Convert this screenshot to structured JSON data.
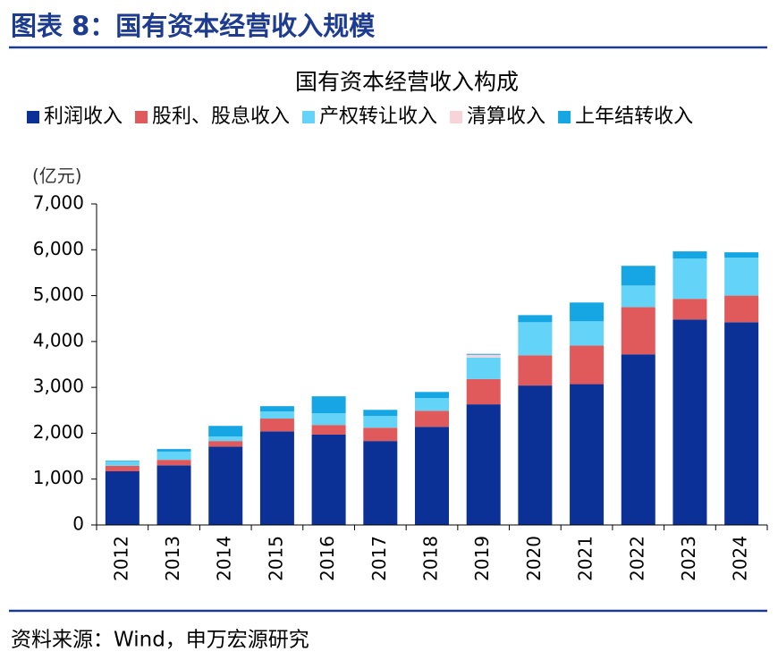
{
  "header": {
    "title": "图表 8：国有资本经营收入规模"
  },
  "chart_data": {
    "type": "stacked_bar",
    "title": "国有资本经营收入构成",
    "y_unit": "(亿元)",
    "categories": [
      "2012",
      "2013",
      "2014",
      "2015",
      "2016",
      "2017",
      "2018",
      "2019",
      "2020",
      "2021",
      "2022",
      "2023",
      "2024"
    ],
    "series": [
      {
        "name": "利润收入",
        "color": "#0b3197",
        "values": [
          1170,
          1300,
          1710,
          2040,
          1970,
          1830,
          2140,
          2630,
          3040,
          3070,
          3720,
          4480,
          4420
        ]
      },
      {
        "name": "股利、股息收入",
        "color": "#e05a5c",
        "values": [
          120,
          120,
          120,
          280,
          210,
          290,
          350,
          550,
          660,
          840,
          1030,
          450,
          580
        ]
      },
      {
        "name": "产权转让收入",
        "color": "#63d4f7",
        "values": [
          95,
          180,
          100,
          155,
          255,
          255,
          275,
          470,
          720,
          530,
          470,
          880,
          830
        ]
      },
      {
        "name": "清算收入",
        "color": "#f9d3da",
        "values": [
          0,
          0,
          0,
          0,
          0,
          0,
          0,
          60,
          0,
          0,
          0,
          0,
          0
        ]
      },
      {
        "name": "上年结转收入",
        "color": "#16a6e4",
        "values": [
          15,
          55,
          230,
          115,
          370,
          135,
          135,
          20,
          155,
          410,
          430,
          155,
          115
        ]
      }
    ],
    "ylim": [
      0,
      7000
    ],
    "yticks": [
      0,
      {
        "value": 1000,
        "label": "1,000"
      },
      {
        "value": 2000,
        "label": "2,000"
      },
      {
        "value": 3000,
        "label": "3,000"
      },
      {
        "value": 4000,
        "label": "4,000"
      },
      {
        "value": 5000,
        "label": "5,000"
      },
      {
        "value": 6000,
        "label": "6,000"
      },
      {
        "value": 7000,
        "label": "7,000"
      }
    ],
    "grid": false
  },
  "footer": {
    "source": "资料来源：Wind，申万宏源研究"
  }
}
